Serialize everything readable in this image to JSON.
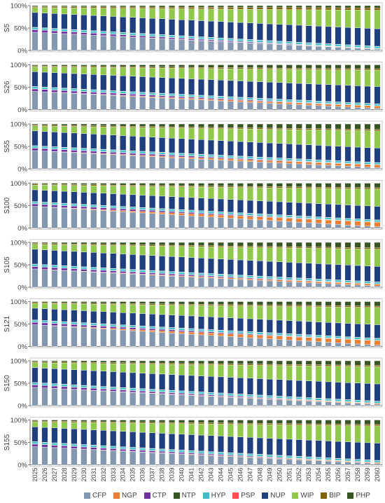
{
  "chart_data": {
    "type": "bar",
    "stacked": "percent",
    "categories": [
      "2025",
      "2026",
      "2027",
      "2028",
      "2029",
      "2030",
      "2031",
      "2032",
      "2033",
      "2034",
      "2035",
      "2036",
      "2037",
      "2038",
      "2039",
      "2040",
      "2041",
      "2042",
      "2043",
      "2044",
      "2045",
      "2046",
      "2047",
      "2048",
      "2049",
      "2050",
      "2051",
      "2052",
      "2053",
      "2054",
      "2055",
      "2056",
      "2057",
      "2058",
      "2059",
      "2060"
    ],
    "y_ticks": [
      "0%",
      "50%",
      "100%"
    ],
    "ylim": [
      0,
      100
    ],
    "grid": false,
    "legend_position": "bottom",
    "series_names": [
      "CFP",
      "NGP",
      "CTP",
      "NTP",
      "HYP",
      "PSP",
      "NUP",
      "WIP",
      "BIP",
      "PHP"
    ],
    "colors": [
      "#8497b0",
      "#ed7d31",
      "#7030a0",
      "#375623",
      "#3cc0c8",
      "#ff5050",
      "#203f7e",
      "#8fc84a",
      "#806000",
      "#375623"
    ],
    "panels": [
      {
        "label": "S5",
        "start": [
          37,
          0,
          5,
          0.5,
          4,
          0.5,
          30,
          10,
          2,
          2
        ],
        "end": [
          3,
          1,
          0,
          0.5,
          4,
          0.5,
          38,
          40,
          5,
          5
        ]
      },
      {
        "label": "S26",
        "start": [
          37,
          0,
          5,
          0.5,
          4,
          0.5,
          30,
          10,
          2,
          2
        ],
        "end": [
          3,
          5,
          0,
          0.5,
          4,
          0.5,
          38,
          36,
          3,
          9
        ]
      },
      {
        "label": "S55",
        "start": [
          37,
          0,
          5,
          0.5,
          4,
          0.5,
          30,
          10,
          2,
          2
        ],
        "end": [
          3,
          6,
          0,
          0.5,
          4,
          0.5,
          32,
          38,
          3,
          12
        ]
      },
      {
        "label": "S100",
        "start": [
          46,
          0,
          5,
          0.5,
          4,
          0.5,
          25,
          10,
          2,
          2
        ],
        "end": [
          3,
          10,
          0,
          0.5,
          4,
          0.5,
          30,
          38,
          3,
          10
        ]
      },
      {
        "label": "S105",
        "start": [
          37,
          0,
          5,
          0.5,
          4,
          0.5,
          30,
          10,
          2,
          2
        ],
        "end": [
          3,
          4,
          0,
          0.5,
          4,
          0.5,
          34,
          38,
          3,
          12
        ]
      },
      {
        "label": "S121",
        "start": [
          46,
          0,
          5,
          0.5,
          4,
          0.5,
          25,
          10,
          2,
          2
        ],
        "end": [
          3,
          10,
          0,
          0.5,
          4,
          0.5,
          30,
          38,
          3,
          10
        ]
      },
      {
        "label": "S150",
        "start": [
          37,
          0,
          5,
          0.5,
          4,
          0.5,
          30,
          10,
          2,
          2
        ],
        "end": [
          3,
          2,
          0,
          0.5,
          4,
          0.5,
          38,
          38,
          3,
          10
        ]
      },
      {
        "label": "S155",
        "start": [
          37,
          0,
          5,
          0.5,
          4,
          0.5,
          30,
          10,
          2,
          2
        ],
        "end": [
          3,
          2,
          0,
          0.5,
          4,
          0.5,
          38,
          38,
          3,
          10
        ]
      }
    ]
  }
}
